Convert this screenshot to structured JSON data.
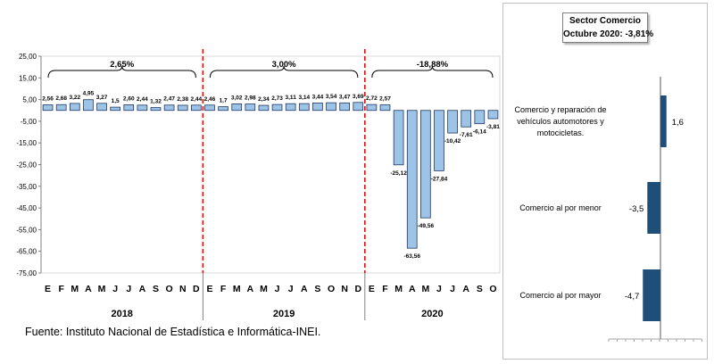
{
  "source": "Fuente: Instituto Nacional de Estadística e Informática-INEI.",
  "colors": {
    "bar_fill": "#9DC3E6",
    "bar_stroke": "#1F3864",
    "divider": "#FF0000",
    "right_bar": "#1F4E79",
    "frame": "#BFBFBF"
  },
  "chart_data": [
    {
      "type": "bar",
      "ylim": [
        -75,
        25
      ],
      "yticks": [
        "25,00",
        "15,00",
        "5,00",
        "-5,00",
        "-15,00",
        "-25,00",
        "-35,00",
        "-45,00",
        "-55,00",
        "-65,00",
        "-75,00"
      ],
      "ytick_values": [
        25,
        15,
        5,
        -5,
        -15,
        -25,
        -35,
        -45,
        -55,
        -65,
        -75
      ],
      "grid": false,
      "years": [
        {
          "label": "2018",
          "months": [
            "E",
            "F",
            "M",
            "A",
            "M",
            "J",
            "J",
            "A",
            "S",
            "O",
            "N",
            "D"
          ]
        },
        {
          "label": "2019",
          "months": [
            "E",
            "F",
            "M",
            "A",
            "M",
            "J",
            "J",
            "A",
            "S",
            "O",
            "N",
            "D"
          ]
        },
        {
          "label": "2020",
          "months": [
            "E",
            "F",
            "M",
            "A",
            "M",
            "J",
            "J",
            "A",
            "S",
            "O"
          ]
        }
      ],
      "values": [
        2.56,
        2.68,
        3.22,
        4.95,
        3.27,
        1.5,
        2.6,
        2.44,
        1.32,
        2.47,
        2.38,
        2.44,
        2.46,
        1.7,
        3.02,
        2.98,
        2.34,
        2.73,
        3.11,
        3.14,
        3.44,
        3.54,
        3.47,
        3.69,
        2.72,
        2.57,
        -25.12,
        -63.56,
        -49.56,
        -27.84,
        -10.42,
        -7.61,
        -6.14,
        -3.81
      ],
      "data_labels": [
        "2,56",
        "2,68",
        "3,22",
        "4,95",
        "3,27",
        "1,5",
        "2,60",
        "2,44",
        "1,32",
        "2,47",
        "2,38",
        "2,44",
        "2,46",
        "1,7",
        "3,02",
        "2,98",
        "2,34",
        "2,73",
        "3,11",
        "3,14",
        "3,44",
        "3,54",
        "3,47",
        "3,69",
        "2,72",
        "2,57",
        "-25,12",
        "-63,56",
        "-49,56",
        "-27,84",
        "-10,42",
        "-7,61",
        "-6,14",
        "-3,81"
      ],
      "year_summaries": [
        "2,65%",
        "3,00%",
        "-18,88%"
      ]
    },
    {
      "type": "bar",
      "orientation": "horizontal",
      "title": "Sector Comercio",
      "subtitle": "Octubre 2020: -3,81%",
      "categories": [
        [
          "Comercio y reparación de",
          "vehículos automotores y",
          "motocicletas."
        ],
        [
          "Comercio al por menor"
        ],
        [
          "Comercio al por mayor"
        ]
      ],
      "values": [
        1.6,
        -3.5,
        -4.7
      ],
      "data_labels": [
        "1,6",
        "-3,5",
        "-4,7"
      ]
    }
  ]
}
